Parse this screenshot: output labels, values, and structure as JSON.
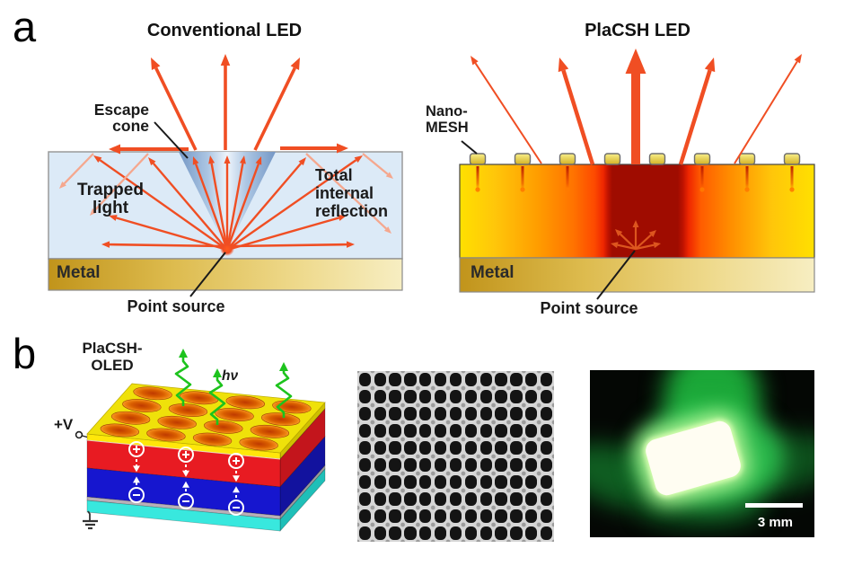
{
  "panel_a": {
    "label": "a",
    "conventional": {
      "title": "Conventional LED",
      "escape_cone": [
        "Escape",
        "cone"
      ],
      "trapped_light": [
        "Trapped",
        "light"
      ],
      "tir": [
        "Total",
        "internal",
        "reflection"
      ],
      "metal": "Metal",
      "point_source": "Point source"
    },
    "placsh": {
      "title": "PlaCSH LED",
      "nano_mesh": [
        "Nano-",
        "MESH"
      ],
      "metal": "Metal",
      "point_source": "Point source"
    }
  },
  "panel_b": {
    "label": "b",
    "device": [
      "PlaCSH-",
      "OLED"
    ],
    "voltage": "+V",
    "photon": "hν",
    "scale_bar": "3 mm"
  },
  "colors": {
    "ray_orange": "#f04e23",
    "ray_pink": "#f5a78e",
    "ray_soft_red": "#e05a20",
    "photon_green": "#1dc31d",
    "charge_white": "#ffffff",
    "metal_gold": "#ddbb4e",
    "anode_yellow": "#ffe70a",
    "hole_layer_red": "#e81b22",
    "electron_layer_blue": "#1616cf",
    "substrate_cyan": "#38e8de",
    "dark_center_red": "#9f0c00"
  }
}
